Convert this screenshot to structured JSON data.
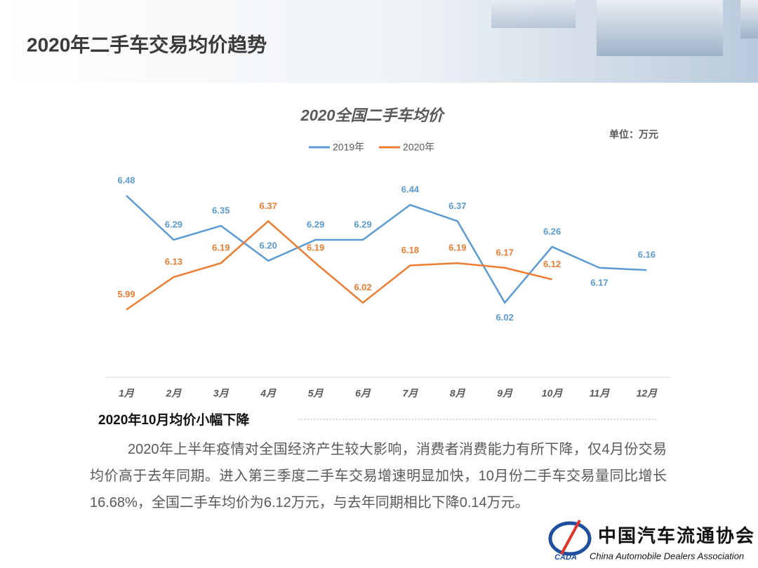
{
  "header": {
    "title": "2020年二手车交易均价趋势"
  },
  "chart_data": {
    "type": "line",
    "title": "2020全国二手车均价",
    "unit": "单位：万元",
    "categories": [
      "1月",
      "2月",
      "3月",
      "4月",
      "5月",
      "6月",
      "7月",
      "8月",
      "9月",
      "10月",
      "11月",
      "12月"
    ],
    "series": [
      {
        "name": "2019年",
        "color": "#5b9bd5",
        "values": [
          6.48,
          6.29,
          6.35,
          6.2,
          6.29,
          6.29,
          6.44,
          6.37,
          6.02,
          6.26,
          6.17,
          6.16
        ],
        "value_labels": [
          "6.48",
          "6.29",
          "6.35",
          "6.20",
          "6.29",
          "6.29",
          "6.44",
          "6.37",
          "6.02",
          "6.26",
          "6.17",
          "6.16"
        ]
      },
      {
        "name": "2020年",
        "color": "#ed7d31",
        "values": [
          5.99,
          6.13,
          6.19,
          6.37,
          6.19,
          6.02,
          6.18,
          6.19,
          6.17,
          6.12,
          null,
          null
        ],
        "value_labels": [
          "5.99",
          "6.13",
          "6.19",
          "6.37",
          "6.19",
          "6.02",
          "6.18",
          "6.19",
          "6.17",
          "6.12",
          null,
          null
        ]
      }
    ],
    "ylim": [
      5.7,
      6.6
    ],
    "legend": "top"
  },
  "section": {
    "heading": "2020年10月均价小幅下降",
    "paragraph": "2020年上半年疫情对全国经济产生较大影响，消费者消费能力有所下降，仅4月份交易均价高于去年同期。进入第三季度二手车交易增速明显加快，10月份二手车交易量同比增长16.68%，全国二手车均价为6.12万元，与去年同期相比下降0.14万元。"
  },
  "logo": {
    "abbr": "CADA",
    "name_cn": "中国汽车流通协会",
    "name_en": "China Automobile Dealers Association"
  }
}
